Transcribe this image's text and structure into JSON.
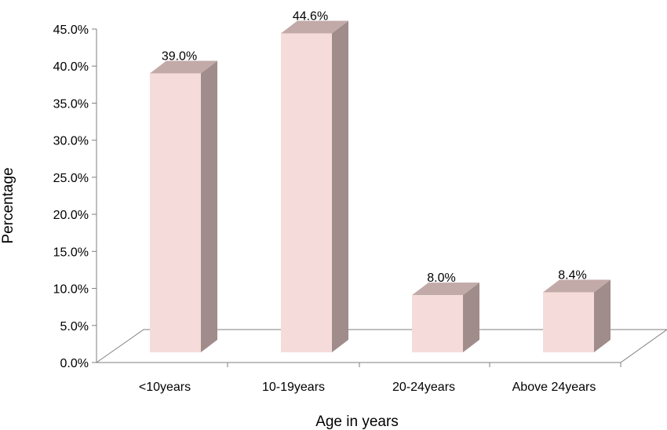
{
  "chart_data": {
    "type": "bar",
    "style": "3d-column",
    "categories": [
      "<10years",
      "10-19years",
      "20-24years",
      "Above 24years"
    ],
    "values": [
      39.0,
      44.6,
      8.0,
      8.4
    ],
    "data_labels": [
      "39.0%",
      "44.6%",
      "8.0%",
      "8.4%"
    ],
    "xlabel": "Age in years",
    "ylabel": "Percentage",
    "ylim": [
      0,
      45
    ],
    "yticks": [
      0,
      5,
      10,
      15,
      20,
      25,
      30,
      35,
      40,
      45
    ],
    "ytick_labels": [
      "0.0%",
      "5.0%",
      "10.0%",
      "15.0%",
      "20.0%",
      "25.0%",
      "30.0%",
      "35.0%",
      "40.0%",
      "45.0%"
    ],
    "grid": false,
    "legend": "none",
    "colors": {
      "bar_front": "#f5dcda",
      "bar_side": "#a08c8a",
      "bar_top": "#c2aaa8",
      "axis": "#7f7f7f"
    }
  }
}
